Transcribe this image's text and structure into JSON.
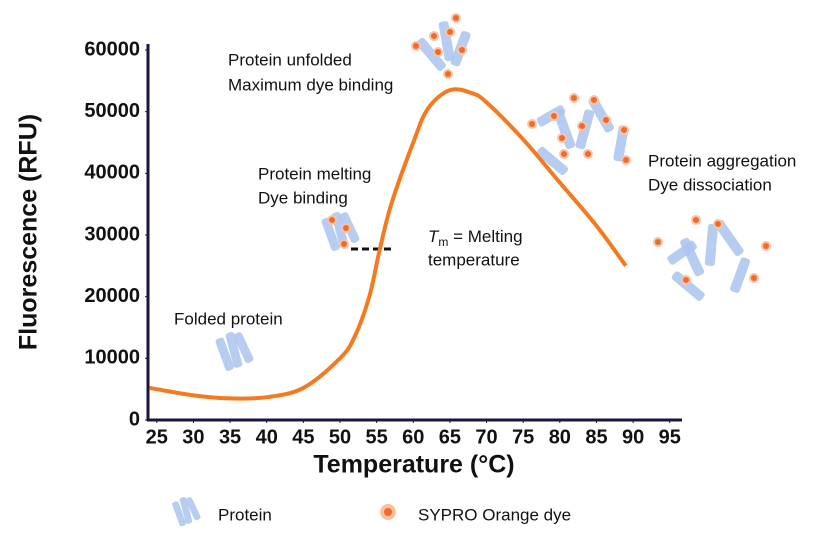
{
  "chart_data": {
    "type": "line",
    "x_label": "Temperature (°C)",
    "y_label": "Fluorescence (RFU)",
    "x": [
      24,
      25,
      30,
      35,
      40,
      45,
      50,
      52,
      54,
      55.4,
      57,
      60,
      62,
      65,
      68,
      70,
      75,
      80,
      85,
      89
    ],
    "values": [
      5200,
      5000,
      4000,
      3500,
      3700,
      5200,
      10000,
      13500,
      20000,
      27500,
      35000,
      45000,
      50500,
      53500,
      53000,
      51500,
      45500,
      38500,
      31500,
      25000
    ],
    "color": "#f47a20",
    "xlim": [
      23.8,
      96.4
    ],
    "ylim": [
      0,
      60000
    ],
    "xticks": [
      25,
      30,
      35,
      40,
      45,
      50,
      55,
      60,
      65,
      70,
      75,
      80,
      85,
      90,
      95
    ],
    "yticks": [
      0,
      10000,
      20000,
      30000,
      40000,
      50000,
      60000
    ],
    "annotations": {
      "folded": [
        "Folded protein"
      ],
      "melting": [
        "Protein melting",
        "Dye binding"
      ],
      "unfolded": [
        "Protein unfolded",
        "Maximum dye binding"
      ],
      "aggregation": [
        "Protein aggregation",
        "Dye dissociation"
      ]
    },
    "tm": {
      "symbol": "T",
      "subscript": "m",
      "text": " = Melting",
      "line2": "temperature"
    },
    "legend_items": [
      "Protein",
      "SYPRO Orange dye"
    ]
  }
}
